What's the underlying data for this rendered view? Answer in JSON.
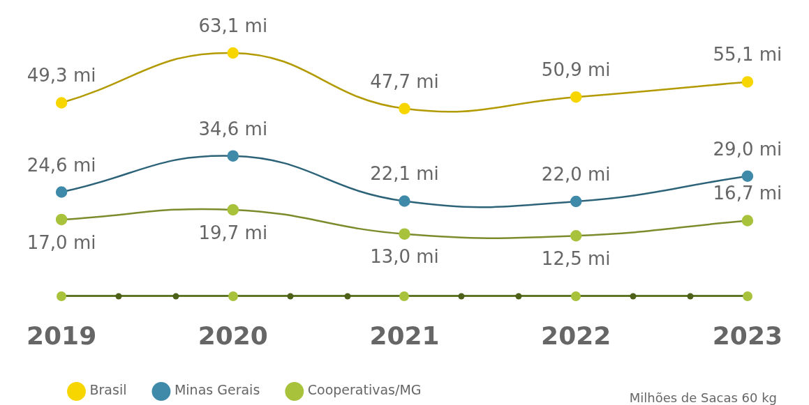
{
  "chart_data": {
    "type": "line",
    "categories": [
      "2019",
      "2020",
      "2021",
      "2022",
      "2023"
    ],
    "series": [
      {
        "name": "Brasil",
        "color": "#f7d600",
        "values": [
          49.3,
          63.1,
          47.7,
          50.9,
          55.1
        ],
        "value_labels": [
          "49,3 mi",
          "63,1 mi",
          "47,7 mi",
          "50,9 mi",
          "55,1 mi"
        ]
      },
      {
        "name": "Minas Gerais",
        "color": "#3f8aa8",
        "values": [
          24.6,
          34.6,
          22.1,
          22.0,
          29.0
        ],
        "value_labels": [
          "24,6 mi",
          "34,6 mi",
          "22,1 mi",
          "22,0 mi",
          "29,0 mi"
        ]
      },
      {
        "name": "Cooperativas/MG",
        "color": "#a9c23c",
        "values": [
          17.0,
          19.7,
          13.0,
          12.5,
          16.7
        ],
        "value_labels": [
          "17,0 mi",
          "19,7 mi",
          "13,0 mi",
          "12,5 mi",
          "16,7 mi"
        ]
      }
    ],
    "legend": "bottom left",
    "marker": "circle",
    "grid": false,
    "annotations": [
      "Milhões de Sacas 60 kg"
    ]
  }
}
